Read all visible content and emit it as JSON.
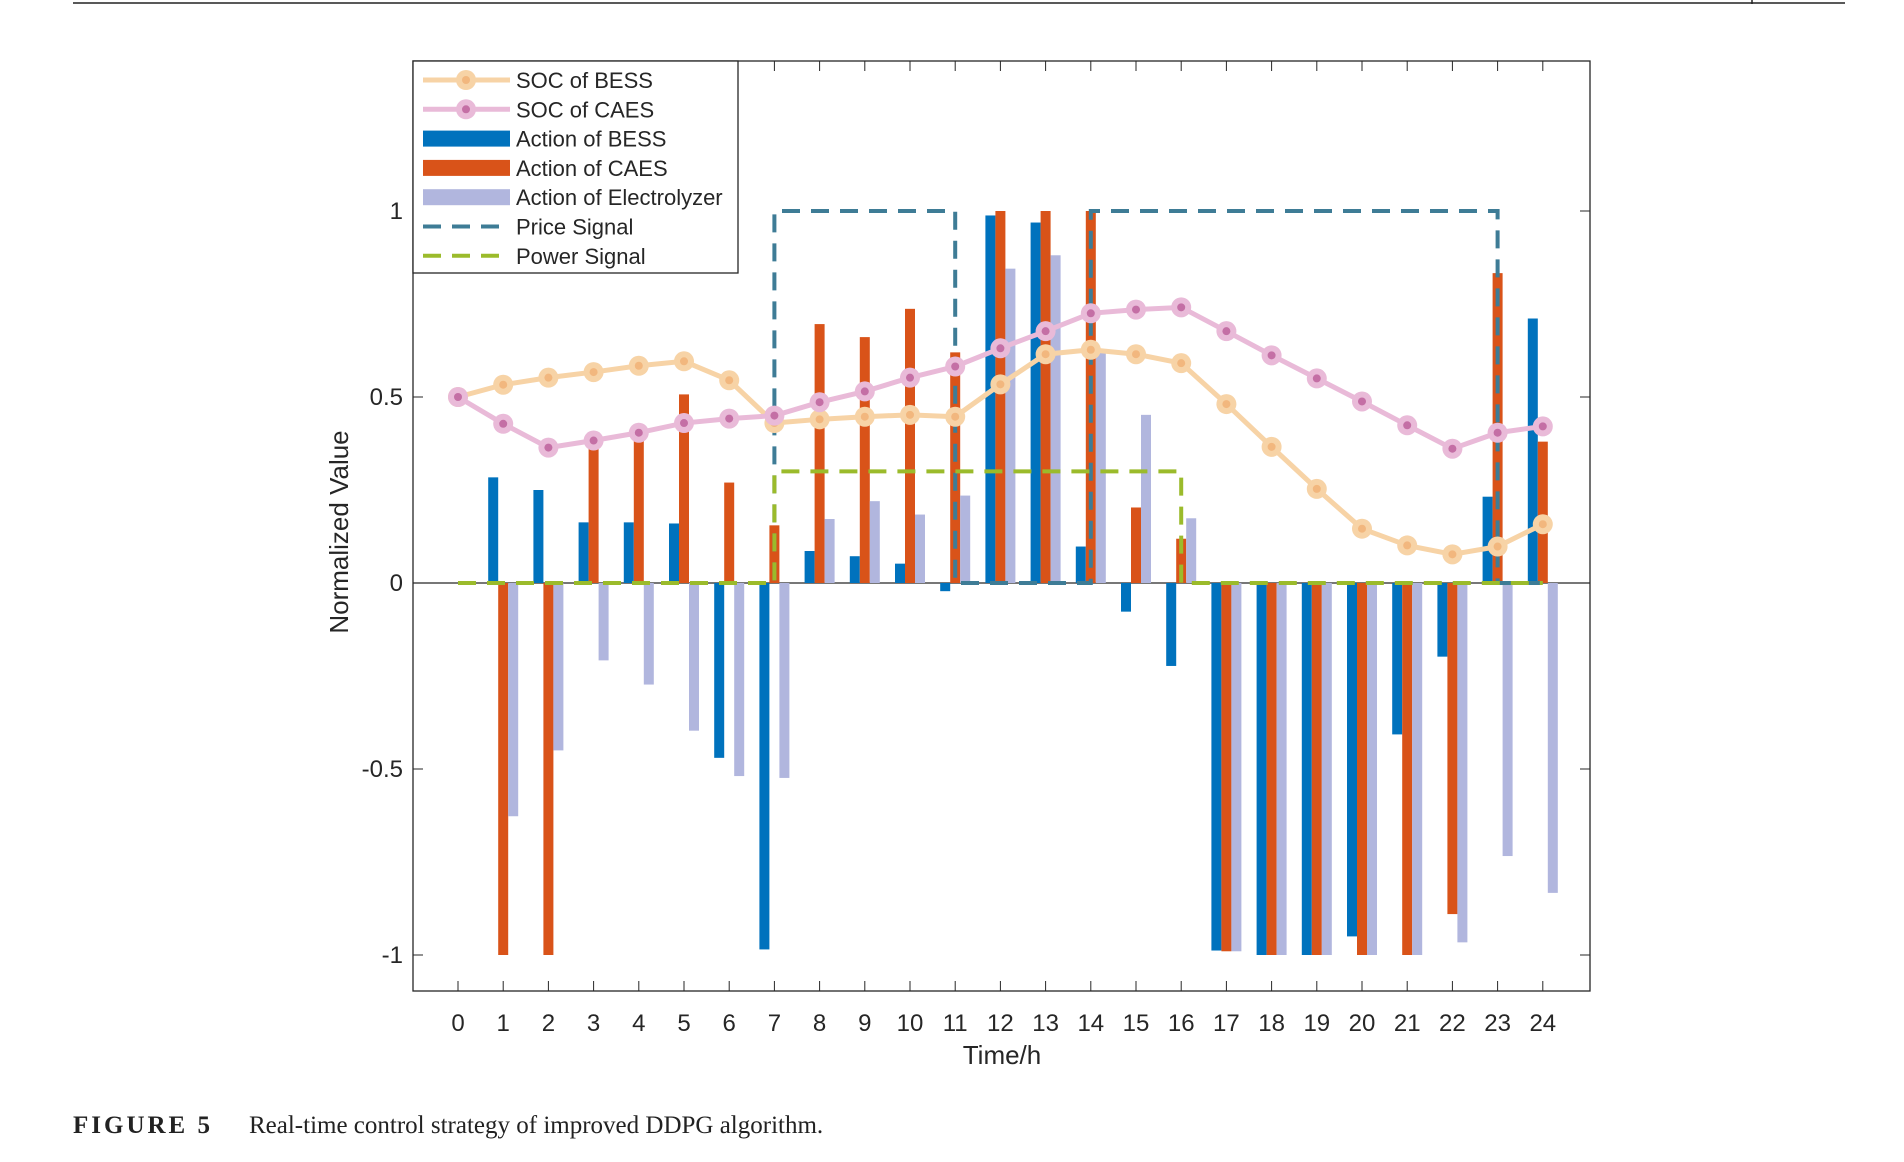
{
  "caption": {
    "label": "FIGURE 5",
    "text": "Real-time control strategy of improved DDPG algorithm."
  },
  "chart_data": {
    "type": "bar",
    "xlabel": "Time/h",
    "ylabel": "Normalized Value",
    "x": [
      0,
      1,
      2,
      3,
      4,
      5,
      6,
      7,
      8,
      9,
      10,
      11,
      12,
      13,
      14,
      15,
      16,
      17,
      18,
      19,
      20,
      21,
      22,
      23,
      24
    ],
    "xlim": [
      -1,
      25.5
    ],
    "ylim": [
      -1.1,
      1.4
    ],
    "yticks": [
      {
        "value": 1,
        "label": "1"
      },
      {
        "value": 0.5,
        "label": "0.5"
      },
      {
        "value": 0,
        "label": "0"
      },
      {
        "value": -0.5,
        "label": "-0.5"
      },
      {
        "value": -1,
        "label": "-1"
      }
    ],
    "grid": false,
    "legend_position": "top-left",
    "series": [
      {
        "name": "SOC of BESS",
        "kind": "line-marker",
        "color": "#F7D3A6",
        "marker_color": "#F2B77E",
        "values": [
          0.5,
          0.533,
          0.552,
          0.567,
          0.584,
          0.596,
          0.545,
          0.43,
          0.44,
          0.447,
          0.452,
          0.447,
          0.534,
          0.615,
          0.627,
          0.615,
          0.591,
          0.481,
          0.366,
          0.253,
          0.146,
          0.101,
          0.077,
          0.098,
          0.158
        ]
      },
      {
        "name": "SOC of CAES",
        "kind": "line-marker",
        "color": "#E9BAD8",
        "marker_color": "#C46FA5",
        "values": [
          0.5,
          0.428,
          0.364,
          0.383,
          0.404,
          0.43,
          0.442,
          0.45,
          0.486,
          0.515,
          0.552,
          0.582,
          0.631,
          0.677,
          0.725,
          0.735,
          0.741,
          0.677,
          0.612,
          0.55,
          0.488,
          0.424,
          0.361,
          0.404,
          0.421
        ]
      },
      {
        "name": "Action of BESS",
        "kind": "bar",
        "color": "#0072BD",
        "values": [
          0,
          0.284,
          0.25,
          0.163,
          0.163,
          0.16,
          -0.47,
          -0.985,
          0.086,
          0.072,
          0.052,
          -0.022,
          0.988,
          0.969,
          0.098,
          -0.077,
          -0.223,
          -0.988,
          -1,
          -1,
          -0.95,
          -0.407,
          -0.198,
          0.232,
          0.711
        ]
      },
      {
        "name": "Action of CAES",
        "kind": "bar",
        "color": "#D95319",
        "values": [
          0,
          -1,
          -1,
          0.37,
          0.395,
          0.507,
          0.27,
          0.155,
          0.696,
          0.661,
          0.737,
          0.62,
          1,
          1,
          1,
          0.203,
          0.119,
          -0.99,
          -1,
          -1,
          -1,
          -1,
          -0.89,
          0.833,
          0.38
        ]
      },
      {
        "name": "Action of Electrolyzer",
        "kind": "bar",
        "color": "#B1B6DE",
        "values": [
          0,
          -0.627,
          -0.45,
          -0.208,
          -0.273,
          -0.397,
          -0.519,
          -0.524,
          0.172,
          0.22,
          0.184,
          0.235,
          0.845,
          0.881,
          0.62,
          0.452,
          0.174,
          -0.99,
          -1,
          -1,
          -1,
          -1,
          -0.966,
          -0.734,
          -0.833
        ]
      },
      {
        "name": "Price Signal",
        "kind": "dashed-step",
        "color": "#3E7C96",
        "points": [
          [
            0,
            0
          ],
          [
            7,
            0
          ],
          [
            7,
            1
          ],
          [
            11,
            1
          ],
          [
            11,
            0
          ],
          [
            14,
            0
          ],
          [
            14,
            1
          ],
          [
            23,
            1
          ],
          [
            23,
            0
          ],
          [
            24,
            0
          ]
        ]
      },
      {
        "name": "Power Signal",
        "kind": "dashed-step",
        "color": "#9BBB2B",
        "points": [
          [
            0,
            0
          ],
          [
            7,
            0
          ],
          [
            7,
            0.3
          ],
          [
            16,
            0.3
          ],
          [
            16,
            0
          ],
          [
            24,
            0
          ]
        ]
      }
    ]
  }
}
